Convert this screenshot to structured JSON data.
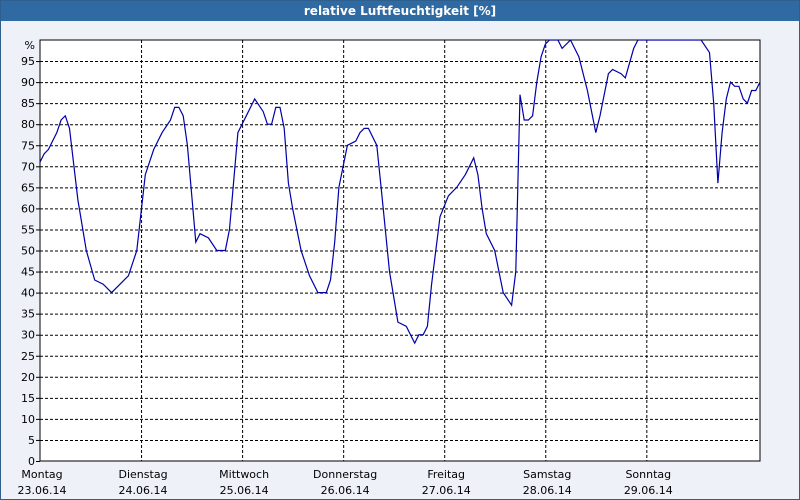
{
  "chart_data": {
    "type": "line",
    "title": "relative Luftfeuchtigkeit [%]",
    "ylabel": "%",
    "ylim": [
      0,
      100
    ],
    "yticks": [
      0,
      5,
      10,
      15,
      20,
      25,
      30,
      35,
      40,
      45,
      50,
      55,
      60,
      65,
      70,
      75,
      80,
      85,
      90,
      95
    ],
    "xlim": [
      "2014-06-23T00:00",
      "2014-06-30T03:00"
    ],
    "grid": true,
    "x_ticks": [
      {
        "day": "Montag",
        "date": "23.06.14"
      },
      {
        "day": "Dienstag",
        "date": "24.06.14"
      },
      {
        "day": "Mittwoch",
        "date": "25.06.14"
      },
      {
        "day": "Donnerstag",
        "date": "26.06.14"
      },
      {
        "day": "Freitag",
        "date": "27.06.14"
      },
      {
        "day": "Samstag",
        "date": "28.06.14"
      },
      {
        "day": "Sonntag",
        "date": "29.06.14"
      }
    ],
    "series": [
      {
        "color": "#0000aa",
        "x": [
          "2014-06-23T00:00",
          "2014-06-23T01:00",
          "2014-06-23T02:00",
          "2014-06-23T03:00",
          "2014-06-23T04:00",
          "2014-06-23T05:00",
          "2014-06-23T06:00",
          "2014-06-23T07:00",
          "2014-06-23T09:00",
          "2014-06-23T11:00",
          "2014-06-23T13:00",
          "2014-06-23T15:00",
          "2014-06-23T17:00",
          "2014-06-23T19:00",
          "2014-06-23T21:00",
          "2014-06-23T23:00",
          "2014-06-24T01:00",
          "2014-06-24T03:00",
          "2014-06-24T05:00",
          "2014-06-24T07:00",
          "2014-06-24T08:00",
          "2014-06-24T09:00",
          "2014-06-24T10:00",
          "2014-06-24T11:00",
          "2014-06-24T13:00",
          "2014-06-24T14:00",
          "2014-06-24T16:00",
          "2014-06-24T18:00",
          "2014-06-24T20:00",
          "2014-06-24T21:00",
          "2014-06-24T23:00",
          "2014-06-25T01:00",
          "2014-06-25T03:00",
          "2014-06-25T05:00",
          "2014-06-25T06:00",
          "2014-06-25T07:00",
          "2014-06-25T08:00",
          "2014-06-25T09:00",
          "2014-06-25T10:00",
          "2014-06-25T11:00",
          "2014-06-25T12:00",
          "2014-06-25T14:00",
          "2014-06-25T16:00",
          "2014-06-25T18:00",
          "2014-06-25T20:00",
          "2014-06-25T21:00",
          "2014-06-25T22:00",
          "2014-06-25T23:00",
          "2014-06-26T01:00",
          "2014-06-26T03:00",
          "2014-06-26T04:00",
          "2014-06-26T05:00",
          "2014-06-26T06:00",
          "2014-06-26T08:00",
          "2014-06-26T09:00",
          "2014-06-26T11:00",
          "2014-06-26T13:00",
          "2014-06-26T15:00",
          "2014-06-26T17:00",
          "2014-06-26T18:00",
          "2014-06-26T19:00",
          "2014-06-26T20:00",
          "2014-06-26T21:00",
          "2014-06-26T23:00",
          "2014-06-27T01:00",
          "2014-06-27T03:00",
          "2014-06-27T05:00",
          "2014-06-27T06:00",
          "2014-06-27T07:00",
          "2014-06-27T08:00",
          "2014-06-27T09:00",
          "2014-06-27T10:00",
          "2014-06-27T12:00",
          "2014-06-27T14:00",
          "2014-06-27T16:00",
          "2014-06-27T17:00",
          "2014-06-27T18:00",
          "2014-06-27T19:00",
          "2014-06-27T20:00",
          "2014-06-27T21:00",
          "2014-06-27T22:00",
          "2014-06-27T23:00",
          "2014-06-28T00:00",
          "2014-06-28T01:00",
          "2014-06-28T03:00",
          "2014-06-28T04:00",
          "2014-06-28T06:00",
          "2014-06-28T08:00",
          "2014-06-28T10:00",
          "2014-06-28T11:00",
          "2014-06-28T12:00",
          "2014-06-28T13:00",
          "2014-06-28T15:00",
          "2014-06-28T16:00",
          "2014-06-28T18:00",
          "2014-06-28T19:00",
          "2014-06-28T21:00",
          "2014-06-28T22:00",
          "2014-06-28T23:00",
          "2014-06-29T00:00",
          "2014-06-29T01:00",
          "2014-06-29T03:00",
          "2014-06-29T05:00",
          "2014-06-29T07:00",
          "2014-06-29T09:00",
          "2014-06-29T13:00",
          "2014-06-29T15:00",
          "2014-06-29T16:00",
          "2014-06-29T17:00",
          "2014-06-29T18:00",
          "2014-06-29T19:00",
          "2014-06-29T20:00",
          "2014-06-29T21:00",
          "2014-06-29T22:00",
          "2014-06-29T23:00",
          "2014-06-30T00:00",
          "2014-06-30T01:00",
          "2014-06-30T02:00",
          "2014-06-30T03:00"
        ],
        "y": [
          71,
          73,
          74,
          76,
          78,
          81,
          82,
          79,
          62,
          50,
          43,
          42,
          40,
          42,
          44,
          50,
          68,
          74,
          78,
          81,
          84,
          84,
          82,
          75,
          52,
          54,
          53,
          50,
          50,
          55,
          78,
          82,
          86,
          83,
          80,
          80,
          84,
          84,
          79,
          66,
          60,
          50,
          44,
          40,
          40,
          43,
          52,
          65,
          75,
          76,
          78,
          79,
          79,
          75,
          65,
          45,
          33,
          32,
          28,
          30,
          30,
          32,
          42,
          58,
          63,
          65,
          68,
          70,
          72,
          68,
          60,
          54,
          50,
          40,
          37,
          45,
          87,
          81,
          81,
          82,
          90,
          96,
          99,
          100,
          100,
          98,
          100,
          96,
          88,
          83,
          78,
          82,
          92,
          93,
          92,
          91,
          98,
          100,
          100,
          100,
          100,
          100,
          100,
          100,
          100,
          100,
          97,
          85,
          66,
          78,
          86,
          90,
          89,
          89,
          86,
          85,
          88,
          88,
          90
        ]
      }
    ]
  }
}
